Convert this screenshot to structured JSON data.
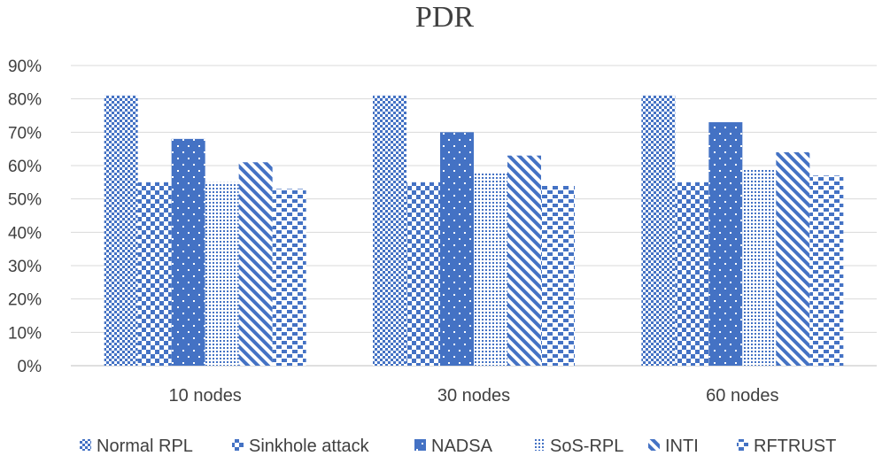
{
  "chart_data": {
    "type": "bar",
    "title": "PDR",
    "categories": [
      "10 nodes",
      "30 nodes",
      "60 nodes"
    ],
    "ylim": [
      0,
      90
    ],
    "yticks": [
      0,
      10,
      20,
      30,
      40,
      50,
      60,
      70,
      80,
      90
    ],
    "ytick_labels": [
      "0%",
      "10%",
      "20%",
      "30%",
      "40%",
      "50%",
      "60%",
      "70%",
      "80%",
      "90%"
    ],
    "grid": true,
    "legend_position": "bottom",
    "series": [
      {
        "name": "Normal RPL",
        "values": [
          81,
          81,
          81
        ]
      },
      {
        "name": "Sinkhole attack",
        "values": [
          55,
          55,
          55
        ]
      },
      {
        "name": "NADSA",
        "values": [
          68,
          70,
          73
        ]
      },
      {
        "name": "SoS-RPL",
        "values": [
          55,
          58,
          59
        ]
      },
      {
        "name": "INTI",
        "values": [
          61,
          63,
          64
        ]
      },
      {
        "name": "RFTRUST",
        "values": [
          53,
          54,
          57
        ]
      }
    ],
    "color": "#4472c4"
  }
}
